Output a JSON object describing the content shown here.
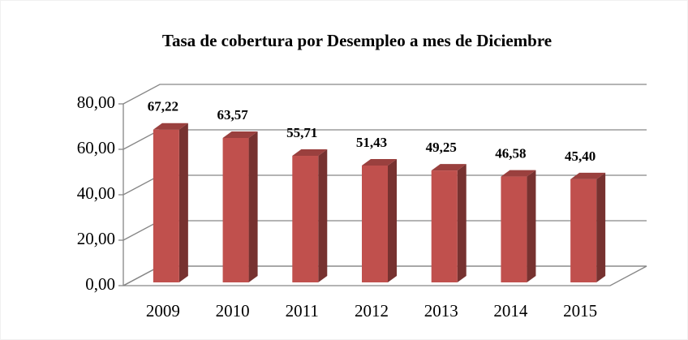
{
  "chart_data": {
    "type": "bar3d",
    "title": "Tasa de cobertura por Desempleo a mes de Diciembre",
    "categories": [
      "2009",
      "2010",
      "2011",
      "2012",
      "2013",
      "2014",
      "2015"
    ],
    "values": [
      67.22,
      63.57,
      55.71,
      51.43,
      49.25,
      46.58,
      45.4
    ],
    "value_labels": [
      "67,22",
      "63,57",
      "55,71",
      "51,43",
      "49,25",
      "46,58",
      "45,40"
    ],
    "color": "#c0504d",
    "ylim": [
      0,
      80
    ],
    "yticks": [
      {
        "value": 0,
        "label": "0,00"
      },
      {
        "value": 20,
        "label": "20,00"
      },
      {
        "value": 40,
        "label": "40,00"
      },
      {
        "value": 60,
        "label": "60,00"
      },
      {
        "value": 80,
        "label": "80,00"
      }
    ],
    "grid": true
  }
}
